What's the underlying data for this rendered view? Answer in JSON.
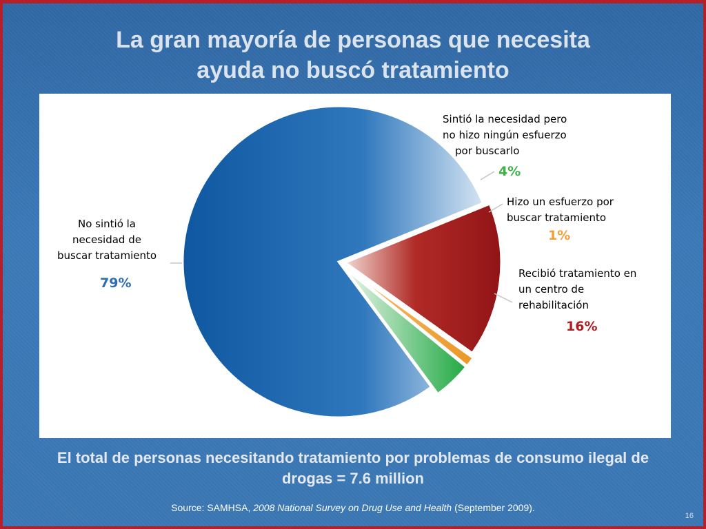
{
  "slide": {
    "title_line1": "La gran mayoría de personas que necesita",
    "title_line2": "ayuda no buscó tratamiento",
    "footer_line1": "El total de personas necesitando tratamiento por problemas de consumo ilegal de",
    "footer_line2": "drogas = 7.6 million",
    "source_prefix": "Source: SAMHSA,",
    "source_title": "2008 National Survey on Drug Use and Health",
    "source_suffix": "(September 2009).",
    "page_number": "16"
  },
  "chart_data": {
    "type": "pie",
    "title": "",
    "slices": [
      {
        "label_lines": [
          "No sintió la",
          "necesidad de",
          "buscar tratamiento"
        ],
        "value": 79,
        "pct_label": "79%",
        "color": "#1f64aa",
        "pct_color": "#2d6eb0"
      },
      {
        "label_lines": [
          "Sintió la necesidad pero",
          "no hizo ningún esfuerzo",
          "por buscarlo"
        ],
        "value": 4,
        "pct_label": "4%",
        "color": "#2fb14e",
        "pct_color": "#3fb24a"
      },
      {
        "label_lines": [
          "Hizo un esfuerzo por",
          "buscar tratamiento"
        ],
        "value": 1,
        "pct_label": "1%",
        "color": "#f0a035",
        "pct_color": "#f0a035"
      },
      {
        "label_lines": [
          "Recibió tratamiento en",
          "un centro de",
          "rehabilitación"
        ],
        "value": 16,
        "pct_label": "16%",
        "color": "#a3191b",
        "pct_color": "#b01c1f"
      }
    ]
  }
}
